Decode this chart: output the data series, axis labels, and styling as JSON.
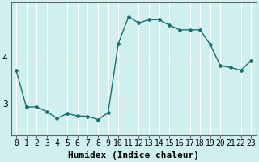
{
  "x": [
    0,
    1,
    2,
    3,
    4,
    5,
    6,
    7,
    8,
    9,
    10,
    11,
    12,
    13,
    14,
    15,
    16,
    17,
    18,
    19,
    20,
    21,
    22,
    23
  ],
  "y": [
    3.72,
    2.92,
    2.93,
    2.82,
    2.68,
    2.78,
    2.73,
    2.72,
    2.65,
    2.8,
    4.3,
    4.88,
    4.75,
    4.82,
    4.82,
    4.7,
    4.6,
    4.6,
    4.6,
    4.28,
    3.82,
    3.78,
    3.72,
    3.93
  ],
  "line_color": "#1a7070",
  "bg_color": "#cff0ee",
  "hgrid_color": "#ff9999",
  "vgrid_color": "#ffffff",
  "xlabel": "Humidex (Indice chaleur)",
  "yticks": [
    3,
    4
  ],
  "xlim": [
    -0.5,
    23.5
  ],
  "ylim": [
    2.3,
    5.2
  ],
  "figsize": [
    3.2,
    2.0
  ],
  "dpi": 100,
  "xlabel_fontsize": 8,
  "tick_fontsize": 7
}
